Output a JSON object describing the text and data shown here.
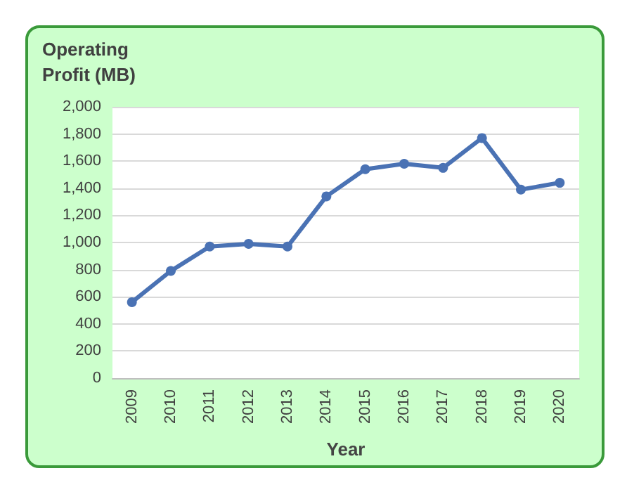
{
  "chart_data": {
    "type": "line",
    "ylabel": "Operating Profit (MB)",
    "xlabel": "Year",
    "categories": [
      "2009",
      "2010",
      "2011",
      "2012",
      "2013",
      "2014",
      "2015",
      "2016",
      "2017",
      "2018",
      "2019",
      "2020"
    ],
    "series": [
      {
        "color": "#4a72b4",
        "values": [
          560,
          790,
          970,
          990,
          970,
          1340,
          1540,
          1580,
          1550,
          1770,
          1390,
          1440
        ]
      }
    ],
    "ylim": [
      0,
      2000
    ],
    "yticks": [
      0,
      200,
      400,
      600,
      800,
      {
        "value": 1000,
        "label": "1,000"
      },
      {
        "value": 1200,
        "label": "1,200"
      },
      {
        "value": 1400,
        "label": "1,400"
      },
      {
        "value": 1600,
        "label": "1,600"
      },
      {
        "value": 1800,
        "label": "1,800"
      },
      {
        "value": 2000,
        "label": "2,000"
      }
    ],
    "grid": "y",
    "marker": "circle",
    "line_style": "solid"
  }
}
